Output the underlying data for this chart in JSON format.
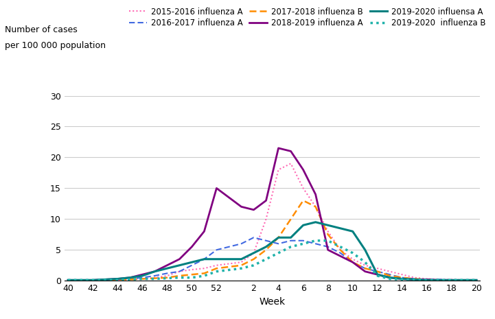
{
  "ylabel_line1": "Number of cases",
  "ylabel_line2": "per 100 000 population",
  "xlabel": "Week",
  "ylim": [
    0,
    30
  ],
  "yticks": [
    0,
    5,
    10,
    15,
    20,
    25,
    30
  ],
  "x_labels": [
    40,
    42,
    44,
    46,
    48,
    50,
    52,
    2,
    4,
    6,
    8,
    10,
    12,
    14,
    16,
    18,
    20
  ],
  "series": [
    {
      "label": "2015-2016 influenza A",
      "color": "#FF69B4",
      "linestyle": "dotted",
      "linewidth": 1.5,
      "data_x": [
        40,
        41,
        42,
        43,
        44,
        45,
        46,
        47,
        48,
        49,
        50,
        51,
        52,
        1,
        2,
        3,
        4,
        5,
        6,
        7,
        8,
        9,
        10,
        11,
        12,
        13,
        14,
        15,
        16,
        17,
        18,
        19,
        20
      ],
      "data_y": [
        0.1,
        0.1,
        0.1,
        0.1,
        0.1,
        0.2,
        0.3,
        0.5,
        0.8,
        1.5,
        1.8,
        2.0,
        2.5,
        3.0,
        4.5,
        10.0,
        18.0,
        19.0,
        15.0,
        12.0,
        8.0,
        5.0,
        3.5,
        2.5,
        2.0,
        1.5,
        1.0,
        0.5,
        0.3,
        0.2,
        0.2,
        0.1,
        0.1
      ]
    },
    {
      "label": "2016-2017 influenza A",
      "color": "#4169E1",
      "linestyle": "dashed",
      "linewidth": 1.5,
      "data_x": [
        40,
        41,
        42,
        43,
        44,
        45,
        46,
        47,
        48,
        49,
        50,
        51,
        52,
        1,
        2,
        3,
        4,
        5,
        6,
        7,
        8,
        9,
        10,
        11,
        12,
        13,
        14,
        15,
        16,
        17,
        18,
        19,
        20
      ],
      "data_y": [
        0.1,
        0.1,
        0.1,
        0.2,
        0.2,
        0.3,
        0.5,
        0.8,
        1.2,
        1.5,
        2.5,
        3.5,
        5.0,
        6.0,
        7.0,
        6.5,
        6.0,
        6.5,
        6.5,
        6.0,
        5.5,
        4.5,
        3.0,
        2.0,
        1.5,
        1.0,
        0.5,
        0.3,
        0.2,
        0.2,
        0.1,
        0.1,
        0.1
      ]
    },
    {
      "label": "2017-2018 influenza B",
      "color": "#FF8C00",
      "linestyle": "dashed",
      "linewidth": 1.8,
      "data_x": [
        40,
        41,
        42,
        43,
        44,
        45,
        46,
        47,
        48,
        49,
        50,
        51,
        52,
        1,
        2,
        3,
        4,
        5,
        6,
        7,
        8,
        9,
        10,
        11,
        12,
        13,
        14,
        15,
        16,
        17,
        18,
        19,
        20
      ],
      "data_y": [
        0.1,
        0.1,
        0.1,
        0.1,
        0.2,
        0.2,
        0.3,
        0.4,
        0.5,
        0.8,
        1.0,
        1.2,
        2.0,
        2.5,
        3.5,
        5.0,
        7.0,
        10.0,
        13.0,
        12.0,
        7.5,
        5.0,
        3.0,
        2.0,
        1.5,
        0.8,
        0.5,
        0.3,
        0.2,
        0.1,
        0.1,
        0.1,
        0.1
      ]
    },
    {
      "label": "2018-2019 influenza A",
      "color": "#800080",
      "linestyle": "solid",
      "linewidth": 2.0,
      "data_x": [
        40,
        41,
        42,
        43,
        44,
        45,
        46,
        47,
        48,
        49,
        50,
        51,
        52,
        1,
        2,
        3,
        4,
        5,
        6,
        7,
        8,
        9,
        10,
        11,
        12,
        13,
        14,
        15,
        16,
        17,
        18,
        19,
        20
      ],
      "data_y": [
        0.1,
        0.1,
        0.1,
        0.2,
        0.3,
        0.5,
        1.0,
        1.5,
        2.5,
        3.5,
        5.5,
        8.0,
        15.0,
        12.0,
        11.5,
        13.0,
        21.5,
        21.0,
        18.0,
        14.0,
        5.0,
        4.0,
        3.0,
        1.5,
        1.0,
        0.5,
        0.3,
        0.2,
        0.2,
        0.1,
        0.1,
        0.1,
        0.1
      ]
    },
    {
      "label": "2019-2020 influensa A",
      "color": "#008080",
      "linestyle": "solid",
      "linewidth": 2.2,
      "data_x": [
        40,
        41,
        42,
        43,
        44,
        45,
        46,
        47,
        48,
        49,
        50,
        51,
        52,
        1,
        2,
        3,
        4,
        5,
        6,
        7,
        8,
        9,
        10,
        11,
        12,
        13,
        14,
        15,
        16,
        17,
        18,
        19,
        20
      ],
      "data_y": [
        0.1,
        0.1,
        0.1,
        0.2,
        0.3,
        0.5,
        0.8,
        1.5,
        2.0,
        2.5,
        3.0,
        3.5,
        3.5,
        3.5,
        4.5,
        5.5,
        7.0,
        7.0,
        9.0,
        9.5,
        9.0,
        8.5,
        8.0,
        5.0,
        1.0,
        0.5,
        0.3,
        0.2,
        0.1,
        0.1,
        0.1,
        0.1,
        0.1
      ]
    },
    {
      "label": "2019-2020  influenza B",
      "color": "#20B2AA",
      "linestyle": "dotted",
      "linewidth": 2.5,
      "data_x": [
        40,
        41,
        42,
        43,
        44,
        45,
        46,
        47,
        48,
        49,
        50,
        51,
        52,
        1,
        2,
        3,
        4,
        5,
        6,
        7,
        8,
        9,
        10,
        11,
        12,
        13,
        14,
        15,
        16,
        17,
        18,
        19,
        20
      ],
      "data_y": [
        0.1,
        0.1,
        0.1,
        0.1,
        0.1,
        0.2,
        0.3,
        0.3,
        0.4,
        0.5,
        0.5,
        0.8,
        1.5,
        2.0,
        2.5,
        3.5,
        4.5,
        5.5,
        6.0,
        6.5,
        6.5,
        5.5,
        4.5,
        3.0,
        0.8,
        0.3,
        0.2,
        0.1,
        0.1,
        0.1,
        0.1,
        0.1,
        0.1
      ]
    }
  ],
  "background_color": "#ffffff",
  "grid_color": "#cccccc",
  "legend_fontsize": 8.5,
  "axis_fontsize": 9,
  "ylabel_fontsize": 9
}
